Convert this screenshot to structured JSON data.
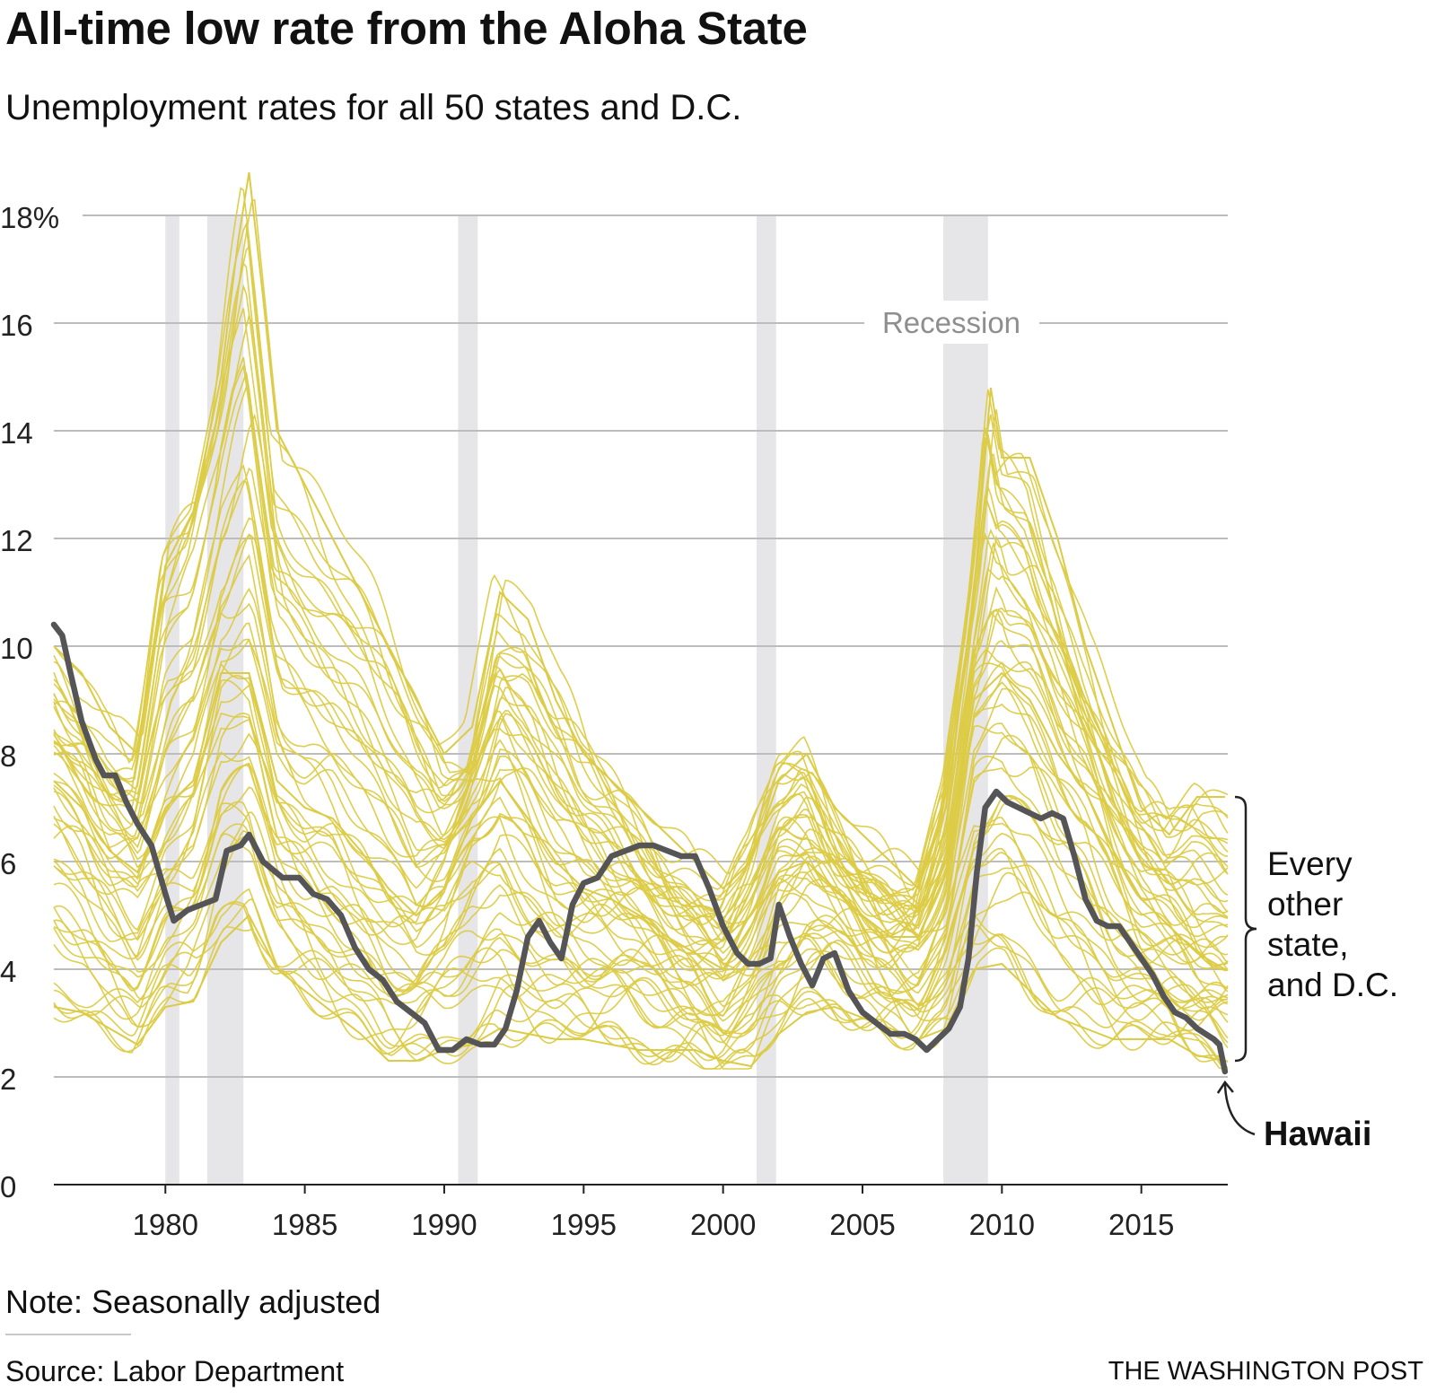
{
  "header": {
    "title": "All-time low rate from the Aloha State",
    "subtitle": "Unemployment rates for all 50 states and D.C."
  },
  "footer": {
    "note": "Note: Seasonally adjusted",
    "source": "Source: Labor Department",
    "credit": "THE WASHINGTON POST"
  },
  "colors": {
    "other_states": "#dccb45",
    "hawaii": "#555557",
    "recession": "#e6e5e7",
    "grid": "#bdbdbd"
  },
  "chart_data": {
    "type": "line",
    "title": "All-time low rate from the Aloha State",
    "subtitle": "Unemployment rates for all 50 states and D.C.",
    "xlabel": "",
    "ylabel": "",
    "xlim": [
      1976.0,
      2018.1
    ],
    "ylim": [
      0,
      18
    ],
    "grid": true,
    "y_ticks": [
      0,
      2,
      4,
      6,
      8,
      10,
      12,
      14,
      16,
      18
    ],
    "y_tick_labels": [
      "0",
      "2",
      "4",
      "6",
      "8",
      "10",
      "12",
      "14",
      "16",
      "18%"
    ],
    "x_ticks": [
      1980,
      1985,
      1990,
      1995,
      2000,
      2005,
      2010,
      2015
    ],
    "x_tick_labels": [
      "1980",
      "1985",
      "1990",
      "1995",
      "2000",
      "2005",
      "2010",
      "2015"
    ],
    "recessions": [
      [
        1980.0,
        1980.5
      ],
      [
        1981.5,
        1982.8
      ],
      [
        1990.5,
        1991.2
      ],
      [
        2001.2,
        2001.9
      ],
      [
        2007.9,
        2009.5
      ]
    ],
    "recession_label": "Recession",
    "annotations": {
      "others_label": [
        "Every",
        "other",
        "state,",
        "and D.C."
      ],
      "hawaii_label": "Hawaii"
    },
    "series": [
      {
        "name": "Hawaii",
        "highlight": true,
        "x": [
          1976.0,
          1976.3,
          1976.6,
          1977.0,
          1977.5,
          1977.8,
          1978.2,
          1978.6,
          1979.0,
          1979.5,
          1980.0,
          1980.3,
          1980.8,
          1981.3,
          1981.8,
          1982.2,
          1982.7,
          1983.0,
          1983.5,
          1984.2,
          1984.8,
          1985.3,
          1985.8,
          1986.3,
          1986.8,
          1987.3,
          1987.8,
          1988.3,
          1988.8,
          1989.3,
          1989.8,
          1990.3,
          1990.8,
          1991.3,
          1991.8,
          1992.2,
          1992.6,
          1993.0,
          1993.4,
          1993.8,
          1994.2,
          1994.6,
          1995.0,
          1995.5,
          1996.0,
          1996.5,
          1997.0,
          1997.5,
          1998.0,
          1998.5,
          1999.0,
          1999.5,
          2000.0,
          2000.5,
          2000.9,
          2001.3,
          2001.7,
          2002.0,
          2002.4,
          2002.8,
          2003.2,
          2003.6,
          2004.0,
          2004.5,
          2005.0,
          2005.5,
          2006.0,
          2006.5,
          2006.9,
          2007.3,
          2007.7,
          2008.1,
          2008.5,
          2008.8,
          2009.1,
          2009.4,
          2009.8,
          2010.2,
          2010.6,
          2011.0,
          2011.4,
          2011.8,
          2012.2,
          2012.6,
          2013.0,
          2013.4,
          2013.8,
          2014.2,
          2014.6,
          2015.0,
          2015.4,
          2015.8,
          2016.2,
          2016.6,
          2017.0,
          2017.3,
          2017.6,
          2017.8,
          2018.0
        ],
        "values": [
          10.4,
          10.2,
          9.5,
          8.6,
          7.9,
          7.6,
          7.6,
          7.1,
          6.7,
          6.3,
          5.4,
          4.9,
          5.1,
          5.2,
          5.3,
          6.2,
          6.3,
          6.5,
          6.0,
          5.7,
          5.7,
          5.4,
          5.3,
          5.0,
          4.4,
          4.0,
          3.8,
          3.4,
          3.2,
          3.0,
          2.5,
          2.5,
          2.7,
          2.6,
          2.6,
          2.9,
          3.6,
          4.6,
          4.9,
          4.5,
          4.2,
          5.2,
          5.6,
          5.7,
          6.1,
          6.2,
          6.3,
          6.3,
          6.2,
          6.1,
          6.1,
          5.5,
          4.8,
          4.3,
          4.1,
          4.1,
          4.2,
          5.2,
          4.6,
          4.1,
          3.7,
          4.2,
          4.3,
          3.6,
          3.2,
          3.0,
          2.8,
          2.8,
          2.7,
          2.5,
          2.7,
          2.9,
          3.3,
          4.2,
          5.8,
          7.0,
          7.3,
          7.1,
          7.0,
          6.9,
          6.8,
          6.9,
          6.8,
          6.1,
          5.3,
          4.9,
          4.8,
          4.8,
          4.5,
          4.2,
          3.9,
          3.5,
          3.2,
          3.1,
          2.9,
          2.8,
          2.7,
          2.6,
          2.1
        ]
      },
      {
        "name": "Other states (highest profile)",
        "highlight": false,
        "x": [
          1976.0,
          1977.0,
          1978.0,
          1979.0,
          1980.0,
          1981.0,
          1982.0,
          1982.6,
          1983.0,
          1983.5,
          1984.0,
          1985.0,
          1986.0,
          1987.0,
          1988.0,
          1989.0,
          1990.0,
          1991.0,
          1992.0,
          1993.0,
          1994.0,
          1995.0,
          1996.0,
          1997.0,
          1998.0,
          1999.0,
          2000.0,
          2001.0,
          2002.0,
          2003.0,
          2004.0,
          2005.0,
          2006.0,
          2007.0,
          2008.0,
          2009.0,
          2009.6,
          2010.0,
          2011.0,
          2012.0,
          2013.0,
          2014.0,
          2015.0,
          2016.0,
          2017.0,
          2018.0
        ],
        "values": [
          10.0,
          9.5,
          8.5,
          8.0,
          11.5,
          12.5,
          15.0,
          17.5,
          18.8,
          16.5,
          14.0,
          13.0,
          12.0,
          11.0,
          10.0,
          9.0,
          8.0,
          8.5,
          11.0,
          10.5,
          9.0,
          8.0,
          7.5,
          7.0,
          6.5,
          6.0,
          5.5,
          6.0,
          7.5,
          8.0,
          7.0,
          6.5,
          6.0,
          5.5,
          7.0,
          11.0,
          14.8,
          13.5,
          13.5,
          12.0,
          10.0,
          8.5,
          7.0,
          6.5,
          7.2,
          7.2
        ]
      },
      {
        "name": "Other states (typical profile)",
        "highlight": false,
        "x": [
          1976.0,
          1977.0,
          1978.0,
          1979.0,
          1980.0,
          1981.0,
          1982.0,
          1983.0,
          1984.0,
          1985.0,
          1986.0,
          1987.0,
          1988.0,
          1989.0,
          1990.0,
          1991.0,
          1992.0,
          1993.0,
          1994.0,
          1995.0,
          1996.0,
          1997.0,
          1998.0,
          1999.0,
          2000.0,
          2001.0,
          2002.0,
          2003.0,
          2004.0,
          2005.0,
          2006.0,
          2007.0,
          2008.0,
          2009.0,
          2010.0,
          2011.0,
          2012.0,
          2013.0,
          2014.0,
          2015.0,
          2016.0,
          2017.0,
          2018.0
        ],
        "values": [
          7.5,
          7.0,
          6.2,
          5.8,
          7.0,
          7.5,
          9.5,
          9.5,
          7.5,
          7.0,
          6.8,
          6.2,
          5.5,
          5.0,
          5.5,
          6.8,
          7.5,
          6.8,
          6.0,
          5.5,
          5.3,
          5.0,
          4.6,
          4.3,
          4.0,
          4.8,
          5.8,
          6.0,
          5.5,
          5.0,
          4.6,
          4.6,
          5.8,
          9.0,
          9.5,
          9.0,
          8.0,
          7.3,
          6.2,
          5.3,
          4.8,
          4.3,
          4.0
        ]
      },
      {
        "name": "Other states (lowest profile)",
        "highlight": false,
        "x": [
          1976.0,
          1977.0,
          1978.0,
          1979.0,
          1980.0,
          1981.0,
          1982.0,
          1983.0,
          1984.0,
          1985.0,
          1986.0,
          1987.0,
          1988.0,
          1989.0,
          1990.0,
          1991.0,
          1992.0,
          1993.0,
          1994.0,
          1995.0,
          1996.0,
          1997.0,
          1998.0,
          1999.0,
          2000.0,
          2001.0,
          2002.0,
          2003.0,
          2004.0,
          2005.0,
          2006.0,
          2007.0,
          2008.0,
          2009.0,
          2010.0,
          2011.0,
          2012.0,
          2013.0,
          2014.0,
          2015.0,
          2016.0,
          2017.0,
          2018.0
        ],
        "values": [
          3.3,
          3.2,
          2.9,
          2.6,
          3.3,
          3.4,
          4.5,
          5.0,
          4.0,
          3.6,
          3.2,
          2.8,
          2.3,
          2.3,
          2.5,
          2.6,
          2.9,
          2.8,
          2.7,
          2.7,
          2.6,
          2.5,
          2.5,
          2.5,
          2.3,
          2.2,
          2.8,
          3.2,
          3.3,
          3.1,
          2.9,
          2.7,
          2.9,
          4.0,
          4.1,
          3.6,
          3.1,
          2.9,
          2.7,
          2.7,
          2.7,
          2.4,
          2.3
        ]
      }
    ]
  }
}
